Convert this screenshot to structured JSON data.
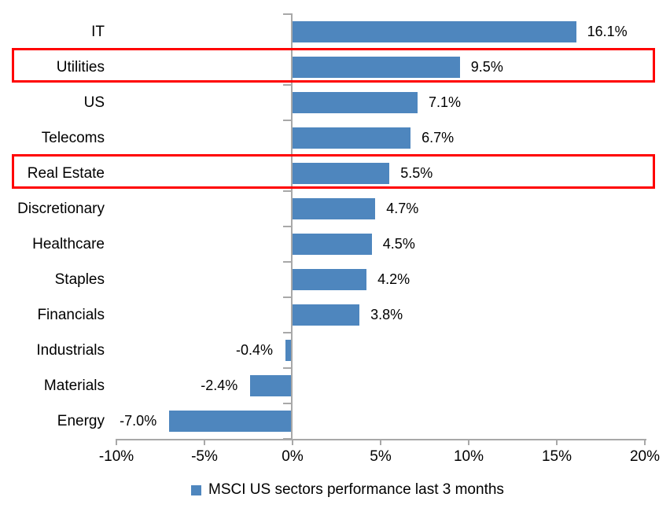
{
  "chart_data": {
    "type": "bar",
    "orientation": "horizontal",
    "title": "",
    "categories": [
      "IT",
      "Utilities",
      "US",
      "Telecoms",
      "Real Estate",
      "Discretionary",
      "Healthcare",
      "Staples",
      "Financials",
      "Industrials",
      "Materials",
      "Energy"
    ],
    "values": [
      16.1,
      9.5,
      7.1,
      6.7,
      5.5,
      4.7,
      4.5,
      4.2,
      3.8,
      -0.4,
      -2.4,
      -7.0
    ],
    "value_labels": [
      "16.1%",
      "9.5%",
      "7.1%",
      "6.7%",
      "5.5%",
      "4.7%",
      "4.5%",
      "4.2%",
      "3.8%",
      "-0.4%",
      "-2.4%",
      "-7.0%"
    ],
    "x_ticks": [
      "-10%",
      "-5%",
      "0%",
      "5%",
      "10%",
      "15%",
      "20%"
    ],
    "x_tick_values": [
      -10,
      -5,
      0,
      5,
      10,
      15,
      20
    ],
    "xlim": [
      -10,
      20
    ],
    "grid": false,
    "bar_color": "#4E86BE",
    "axis_color": "#A8A8A8",
    "highlight_color": "#FF0000",
    "highlighted_categories": [
      "Utilities",
      "Real Estate"
    ],
    "legend": {
      "position": "bottom",
      "marker_color": "#4E86BE",
      "label": "MSCI US sectors performance last 3 months"
    }
  }
}
